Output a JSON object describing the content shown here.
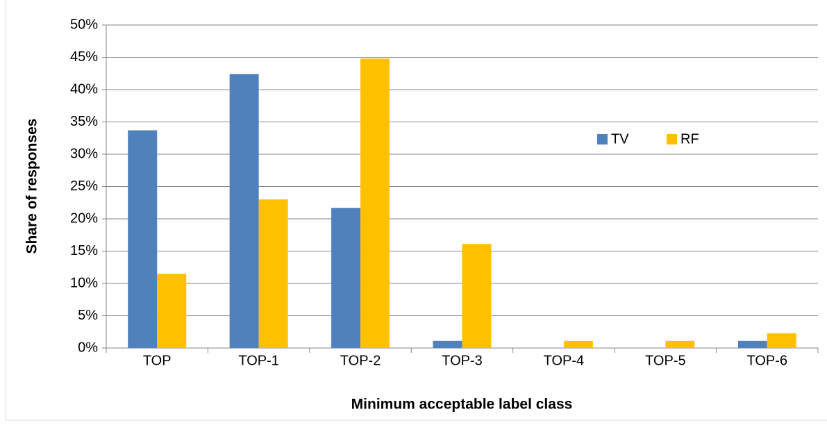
{
  "chart_data": {
    "type": "bar",
    "xlabel": "Minimum acceptable label class",
    "ylabel": "Share of responses",
    "categories": [
      "TOP",
      "TOP-1",
      "TOP-2",
      "TOP-3",
      "TOP-4",
      "TOP-5",
      "TOP-6"
    ],
    "series": [
      {
        "name": "TV",
        "color": "#4f81bd",
        "values": [
          33.7,
          42.4,
          21.7,
          1.1,
          0,
          0,
          1.1
        ]
      },
      {
        "name": "RF",
        "color": "#ffc000",
        "values": [
          11.5,
          23.0,
          44.8,
          16.1,
          1.1,
          1.1,
          2.3
        ]
      }
    ],
    "ylim": [
      0,
      50
    ],
    "yticks": [
      {
        "value": 0,
        "label": "0%"
      },
      {
        "value": 5,
        "label": "5%"
      },
      {
        "value": 10,
        "label": "10%"
      },
      {
        "value": 15,
        "label": "15%"
      },
      {
        "value": 20,
        "label": "20%"
      },
      {
        "value": 25,
        "label": "25%"
      },
      {
        "value": 30,
        "label": "30%"
      },
      {
        "value": 35,
        "label": "35%"
      },
      {
        "value": 40,
        "label": "40%"
      },
      {
        "value": 45,
        "label": "45%"
      },
      {
        "value": 50,
        "label": "50%"
      }
    ],
    "grid": true
  }
}
